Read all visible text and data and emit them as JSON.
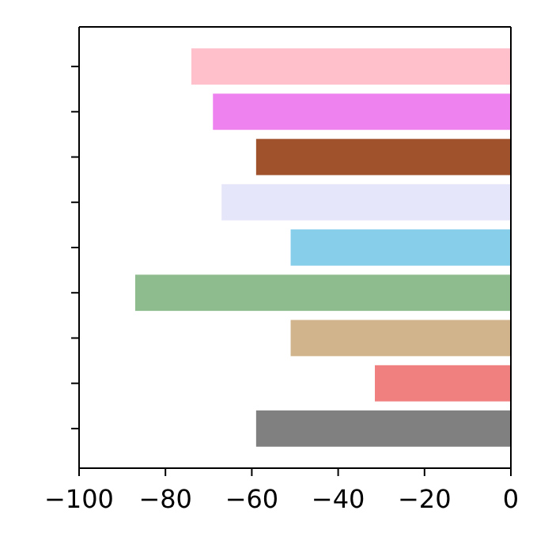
{
  "chart_data": {
    "type": "bar",
    "orientation": "horizontal",
    "categories": [
      null,
      null,
      null,
      null,
      null,
      null,
      null,
      null,
      null
    ],
    "values": [
      -74,
      -69,
      -59,
      -67,
      -51,
      -87,
      -51,
      -31.5,
      -59
    ],
    "colors": [
      "#ffc0cb",
      "#ee82ee",
      "#a0522d",
      "#e6e6fa",
      "#87ceeb",
      "#8fbc8f",
      "#d2b48c",
      "#f08080",
      "#808080"
    ],
    "xlim": [
      -100,
      0
    ],
    "xticks": [
      {
        "value": -100,
        "label": "−100"
      },
      {
        "value": -80,
        "label": "−80"
      },
      {
        "value": -60,
        "label": "−60"
      },
      {
        "value": -40,
        "label": "−40"
      },
      {
        "value": -20,
        "label": "−20"
      },
      {
        "value": 0,
        "label": "0"
      }
    ],
    "tick_labels": "x",
    "grid": false
  }
}
